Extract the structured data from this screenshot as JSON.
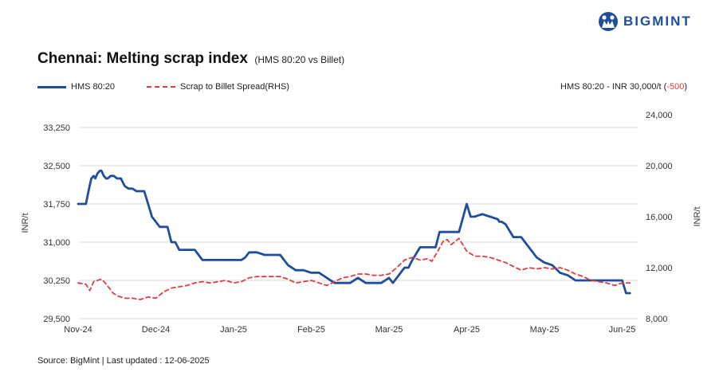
{
  "brand": {
    "name": "BIGMINT"
  },
  "header": {
    "title": "Chennai: Melting scrap index",
    "subtitle": "(HMS 80:20 vs Billet)"
  },
  "legend": {
    "series1": "HMS 80:20",
    "series2": "Scrap to Billet Spread(RHS)"
  },
  "note": {
    "text": "HMS 80:20 - INR 30,000/t (",
    "change": "-500",
    "close": ")"
  },
  "footer": {
    "source": "Source: BigMint | Last updated : 12-06-2025"
  },
  "colors": {
    "primary": "#1f4e9c",
    "secondary": "#e23b3b",
    "grid": "#d9d9d9"
  },
  "chart_data": {
    "type": "line",
    "ylabel": "INR/t",
    "y2label": "INR/t",
    "ylim": [
      29500,
      33250
    ],
    "yticks": [
      29500,
      30250,
      31000,
      31750,
      32500,
      33250
    ],
    "ytick_labels": [
      "29,500",
      "30,250",
      "31,000",
      "31,750",
      "32,500",
      "33,250"
    ],
    "y2lim": [
      8000,
      24000
    ],
    "y2ticks": [
      8000,
      12000,
      16000,
      20000,
      24000
    ],
    "y2tick_labels": [
      "8,000",
      "12,000",
      "16,000",
      "20,000",
      "24,000"
    ],
    "xlim": [
      0,
      7.2
    ],
    "xticks": [
      0,
      1,
      2,
      3,
      4,
      5,
      6,
      7
    ],
    "xtick_labels": [
      "Nov-24",
      "Dec-24",
      "Jan-25",
      "Feb-25",
      "Mar-25",
      "Apr-25",
      "May-25",
      "Jun-25"
    ],
    "grid": "horizontal",
    "series": [
      {
        "name": "HMS 80:20",
        "axis": "left",
        "style": "solid",
        "x": [
          0,
          0.1,
          0.14,
          0.17,
          0.2,
          0.22,
          0.25,
          0.28,
          0.3,
          0.33,
          0.36,
          0.38,
          0.42,
          0.46,
          0.5,
          0.55,
          0.6,
          0.65,
          0.7,
          0.75,
          0.8,
          0.85,
          0.9,
          0.95,
          1.05,
          1.1,
          1.15,
          1.2,
          1.25,
          1.3,
          1.4,
          1.5,
          1.6,
          1.7,
          1.8,
          1.9,
          2.0,
          2.1,
          2.15,
          2.2,
          2.3,
          2.4,
          2.5,
          2.6,
          2.7,
          2.8,
          2.9,
          3.0,
          3.05,
          3.1,
          3.2,
          3.3,
          3.4,
          3.5,
          3.6,
          3.7,
          3.8,
          3.9,
          4.0,
          4.05,
          4.1,
          4.15,
          4.2,
          4.25,
          4.3,
          4.4,
          4.5,
          4.6,
          4.65,
          4.7,
          4.75,
          4.8,
          4.9,
          5.0,
          5.05,
          5.1,
          5.2,
          5.3,
          5.4,
          5.42,
          5.45,
          5.5,
          5.6,
          5.7,
          5.8,
          5.9,
          6.0,
          6.1,
          6.2,
          6.3,
          6.4,
          6.5,
          6.6,
          6.7,
          6.8,
          6.9,
          7.0,
          7.05,
          7.1
        ],
        "values": [
          31750,
          31750,
          32050,
          32250,
          32300,
          32250,
          32350,
          32400,
          32400,
          32300,
          32250,
          32250,
          32300,
          32300,
          32250,
          32250,
          32100,
          32050,
          32050,
          32000,
          32000,
          32000,
          31750,
          31500,
          31300,
          31300,
          31300,
          31000,
          31000,
          30850,
          30850,
          30850,
          30650,
          30650,
          30650,
          30650,
          30650,
          30650,
          30700,
          30800,
          30800,
          30750,
          30750,
          30750,
          30550,
          30450,
          30450,
          30400,
          30400,
          30400,
          30300,
          30200,
          30200,
          30200,
          30300,
          30200,
          30200,
          30200,
          30300,
          30200,
          30300,
          30400,
          30500,
          30500,
          30650,
          30900,
          30900,
          30900,
          31200,
          31200,
          31200,
          31200,
          31200,
          31750,
          31500,
          31500,
          31550,
          31500,
          31450,
          31400,
          31400,
          31350,
          31100,
          31100,
          30900,
          30700,
          30600,
          30550,
          30400,
          30350,
          30250,
          30250,
          30250,
          30250,
          30250,
          30250,
          30250,
          30000,
          30000
        ]
      },
      {
        "name": "Scrap to Billet Spread(RHS)",
        "axis": "right",
        "style": "dashed",
        "x": [
          0,
          0.1,
          0.15,
          0.2,
          0.3,
          0.35,
          0.4,
          0.45,
          0.5,
          0.6,
          0.7,
          0.8,
          0.9,
          1.0,
          1.1,
          1.2,
          1.3,
          1.4,
          1.5,
          1.6,
          1.7,
          1.8,
          1.9,
          2.0,
          2.1,
          2.2,
          2.3,
          2.4,
          2.5,
          2.6,
          2.7,
          2.8,
          2.9,
          3.0,
          3.1,
          3.2,
          3.3,
          3.4,
          3.5,
          3.6,
          3.7,
          3.8,
          3.9,
          4.0,
          4.1,
          4.2,
          4.3,
          4.4,
          4.5,
          4.55,
          4.6,
          4.7,
          4.75,
          4.8,
          4.9,
          5.0,
          5.1,
          5.2,
          5.3,
          5.4,
          5.5,
          5.6,
          5.7,
          5.8,
          5.9,
          6.0,
          6.1,
          6.2,
          6.3,
          6.4,
          6.5,
          6.6,
          6.7,
          6.8,
          6.9,
          7.0,
          7.1
        ],
        "values": [
          10800,
          10700,
          10200,
          10900,
          11100,
          10800,
          10400,
          10000,
          9800,
          9600,
          9600,
          9500,
          9700,
          9600,
          10100,
          10400,
          10500,
          10600,
          10800,
          10900,
          10800,
          10900,
          11000,
          10800,
          10900,
          11200,
          11300,
          11300,
          11300,
          11300,
          11100,
          10800,
          10900,
          11000,
          10800,
          10600,
          10900,
          11200,
          11300,
          11500,
          11500,
          11400,
          11400,
          11500,
          12000,
          12600,
          12800,
          12600,
          12700,
          12500,
          13000,
          14100,
          14200,
          13800,
          14300,
          13300,
          12900,
          12900,
          12800,
          12600,
          12400,
          12100,
          11800,
          12000,
          11900,
          12000,
          11900,
          12000,
          11800,
          11500,
          11300,
          11000,
          10900,
          10800,
          10600,
          10800,
          10800
        ]
      }
    ]
  }
}
